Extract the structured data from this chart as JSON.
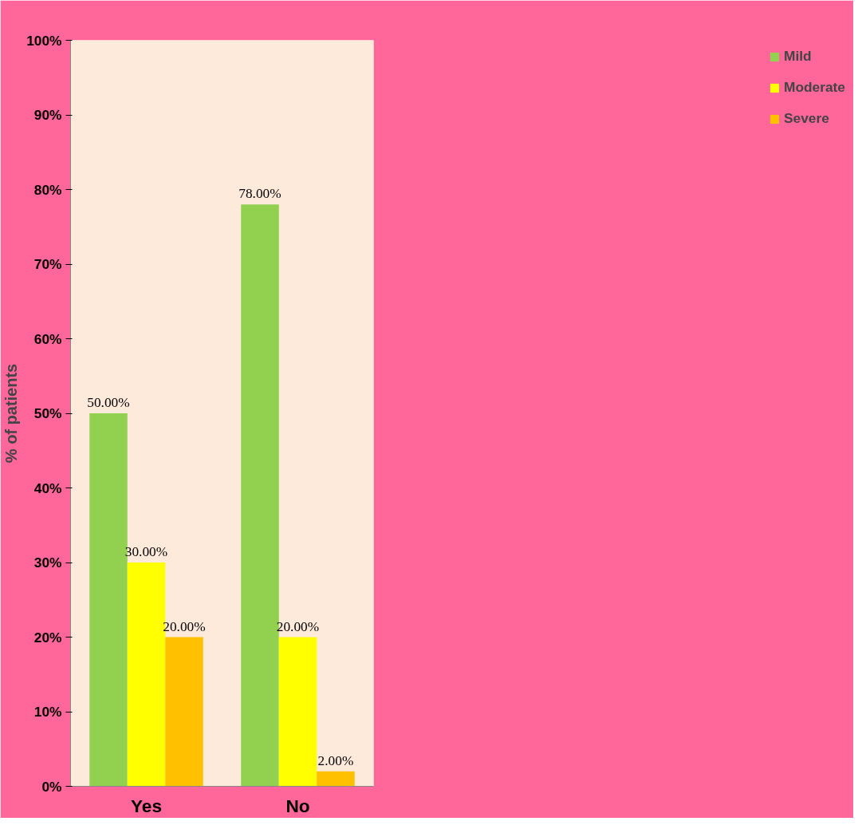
{
  "chart_data": {
    "type": "bar",
    "ylabel": "% of patients",
    "categories": [
      "Yes",
      "No"
    ],
    "series": [
      {
        "name": "Mild",
        "color": "#92d050",
        "values": [
          50,
          78
        ],
        "value_labels": [
          "50.00%",
          "78.00%"
        ]
      },
      {
        "name": "Moderate",
        "color": "#ffff00",
        "values": [
          30,
          20
        ],
        "value_labels": [
          "30.00%",
          "20.00%"
        ]
      },
      {
        "name": "Severe",
        "color": "#ffc000",
        "values": [
          20,
          2
        ],
        "value_labels": [
          "20.00%",
          "2.00%"
        ]
      }
    ],
    "ylim": [
      0,
      100
    ],
    "yticks": [
      {
        "value": 0,
        "label": "0%"
      },
      {
        "value": 10,
        "label": "10%"
      },
      {
        "value": 20,
        "label": "20%"
      },
      {
        "value": 30,
        "label": "30%"
      },
      {
        "value": 40,
        "label": "40%"
      },
      {
        "value": 50,
        "label": "50%"
      },
      {
        "value": 60,
        "label": "60%"
      },
      {
        "value": 70,
        "label": "70%"
      },
      {
        "value": 80,
        "label": "80%"
      },
      {
        "value": 90,
        "label": "90%"
      },
      {
        "value": 100,
        "label": "100%"
      }
    ],
    "grid": false,
    "legend": "right"
  }
}
